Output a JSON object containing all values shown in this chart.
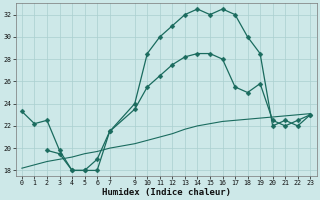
{
  "xlabel": "Humidex (Indice chaleur)",
  "bg_color": "#cde8e8",
  "grid_color": "#aacfcf",
  "line_color": "#1a6b5e",
  "line1_x": [
    0,
    1,
    2,
    3,
    4,
    5,
    6,
    7,
    9,
    10,
    11,
    12,
    13,
    14,
    15,
    16,
    17,
    18,
    19,
    20,
    21,
    22,
    23
  ],
  "line1_y": [
    23.3,
    22.2,
    22.5,
    19.8,
    18.0,
    18.0,
    18.0,
    21.5,
    24.0,
    28.5,
    30.0,
    31.0,
    32.0,
    32.5,
    32.0,
    32.5,
    32.0,
    30.0,
    28.5,
    22.0,
    22.5,
    22.0,
    23.0
  ],
  "line2_x": [
    2,
    3,
    4,
    5,
    6,
    7,
    9,
    10,
    11,
    12,
    13,
    14,
    15,
    16,
    17,
    18,
    19,
    20,
    21,
    22,
    23
  ],
  "line2_y": [
    19.8,
    19.5,
    18.0,
    18.0,
    19.0,
    21.5,
    23.5,
    25.5,
    26.5,
    27.5,
    28.2,
    28.5,
    28.5,
    28.0,
    25.5,
    25.0,
    25.8,
    22.5,
    22.0,
    22.5,
    23.0
  ],
  "line3_x": [
    0,
    1,
    2,
    3,
    4,
    5,
    6,
    7,
    9,
    10,
    11,
    12,
    13,
    14,
    15,
    16,
    17,
    18,
    19,
    20,
    21,
    22,
    23
  ],
  "line3_y": [
    18.2,
    18.5,
    18.8,
    19.0,
    19.2,
    19.5,
    19.7,
    20.0,
    20.4,
    20.7,
    21.0,
    21.3,
    21.7,
    22.0,
    22.2,
    22.4,
    22.5,
    22.6,
    22.7,
    22.8,
    22.9,
    23.0,
    23.1
  ],
  "ylim": [
    17.5,
    33.0
  ],
  "xlim": [
    -0.5,
    23.5
  ],
  "yticks": [
    18,
    20,
    22,
    24,
    26,
    28,
    30,
    32
  ],
  "xticks": [
    0,
    1,
    2,
    3,
    4,
    5,
    6,
    7,
    9,
    10,
    11,
    12,
    13,
    14,
    15,
    16,
    17,
    18,
    19,
    20,
    21,
    22,
    23
  ],
  "xlabel_fontsize": 6.5,
  "tick_fontsize": 4.8
}
